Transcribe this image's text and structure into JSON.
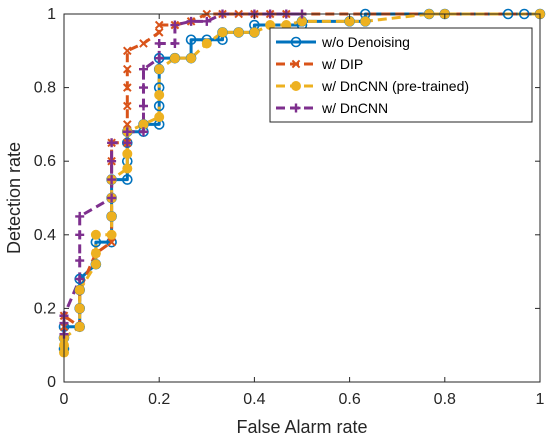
{
  "chart_data": {
    "type": "line",
    "title": "",
    "xlabel": "False Alarm rate",
    "ylabel": "Detection rate",
    "xlim": [
      0,
      1
    ],
    "ylim": [
      0,
      1
    ],
    "x_ticks": [
      "0",
      "0.2",
      "0.4",
      "0.6",
      "0.8",
      "1"
    ],
    "y_ticks": [
      "0",
      "0.2",
      "0.4",
      "0.6",
      "0.8",
      "1"
    ],
    "grid": false,
    "legend_position": "top-right",
    "series": [
      {
        "name": "w/o Denoising",
        "color": "#0072BD",
        "marker": "circle-open",
        "line_style": "solid",
        "points": [
          [
            0,
            0.09
          ],
          [
            0,
            0.12
          ],
          [
            0,
            0.15
          ],
          [
            0.033,
            0.15
          ],
          [
            0.033,
            0.2
          ],
          [
            0.033,
            0.25
          ],
          [
            0.033,
            0.28
          ],
          [
            0.067,
            0.32
          ],
          [
            0.067,
            0.38
          ],
          [
            0.1,
            0.38
          ],
          [
            0.1,
            0.45
          ],
          [
            0.1,
            0.5
          ],
          [
            0.1,
            0.55
          ],
          [
            0.133,
            0.55
          ],
          [
            0.133,
            0.6
          ],
          [
            0.133,
            0.65
          ],
          [
            0.133,
            0.68
          ],
          [
            0.167,
            0.68
          ],
          [
            0.167,
            0.7
          ],
          [
            0.2,
            0.7
          ],
          [
            0.2,
            0.75
          ],
          [
            0.2,
            0.8
          ],
          [
            0.2,
            0.85
          ],
          [
            0.2,
            0.88
          ],
          [
            0.233,
            0.88
          ],
          [
            0.267,
            0.88
          ],
          [
            0.267,
            0.93
          ],
          [
            0.3,
            0.93
          ],
          [
            0.333,
            0.93
          ],
          [
            0.333,
            0.95
          ],
          [
            0.367,
            0.95
          ],
          [
            0.4,
            0.95
          ],
          [
            0.4,
            0.97
          ],
          [
            0.5,
            0.97
          ],
          [
            0.5,
            0.98
          ],
          [
            0.6,
            0.98
          ],
          [
            0.633,
            0.98
          ],
          [
            0.633,
            1.0
          ],
          [
            0.767,
            1.0
          ],
          [
            0.8,
            1.0
          ],
          [
            0.933,
            1.0
          ],
          [
            0.967,
            1.0
          ],
          [
            1.0,
            1.0
          ]
        ]
      },
      {
        "name": "w/ DIP",
        "color": "#D95319",
        "marker": "x",
        "line_style": "dashed",
        "points": [
          [
            0,
            0.15
          ],
          [
            0,
            0.18
          ],
          [
            0.033,
            0.15
          ],
          [
            0.033,
            0.2
          ],
          [
            0.033,
            0.25
          ],
          [
            0.067,
            0.35
          ],
          [
            0.1,
            0.38
          ],
          [
            0.1,
            0.45
          ],
          [
            0.1,
            0.5
          ],
          [
            0.1,
            0.55
          ],
          [
            0.1,
            0.6
          ],
          [
            0.1,
            0.65
          ],
          [
            0.133,
            0.65
          ],
          [
            0.133,
            0.7
          ],
          [
            0.133,
            0.75
          ],
          [
            0.133,
            0.8
          ],
          [
            0.133,
            0.85
          ],
          [
            0.133,
            0.9
          ],
          [
            0.167,
            0.92
          ],
          [
            0.2,
            0.95
          ],
          [
            0.2,
            0.97
          ],
          [
            0.233,
            0.97
          ],
          [
            0.267,
            0.98
          ],
          [
            0.3,
            1.0
          ],
          [
            0.333,
            1.0
          ],
          [
            0.367,
            1.0
          ],
          [
            0.4,
            1.0
          ],
          [
            0.433,
            1.0
          ],
          [
            0.467,
            1.0
          ],
          [
            0.8,
            1.0
          ],
          [
            1.0,
            1.0
          ]
        ]
      },
      {
        "name": "w/ DnCNN (pre-trained)",
        "color": "#EDB120",
        "marker": "circle-filled",
        "line_style": "dashed",
        "points": [
          [
            0,
            0.08
          ],
          [
            0,
            0.1
          ],
          [
            0,
            0.12
          ],
          [
            0.033,
            0.15
          ],
          [
            0.033,
            0.2
          ],
          [
            0.033,
            0.25
          ],
          [
            0.067,
            0.32
          ],
          [
            0.067,
            0.35
          ],
          [
            0.067,
            0.4
          ],
          [
            0.1,
            0.4
          ],
          [
            0.1,
            0.45
          ],
          [
            0.1,
            0.5
          ],
          [
            0.1,
            0.55
          ],
          [
            0.133,
            0.58
          ],
          [
            0.133,
            0.62
          ],
          [
            0.133,
            0.68
          ],
          [
            0.167,
            0.7
          ],
          [
            0.2,
            0.72
          ],
          [
            0.2,
            0.78
          ],
          [
            0.2,
            0.85
          ],
          [
            0.233,
            0.88
          ],
          [
            0.267,
            0.88
          ],
          [
            0.3,
            0.92
          ],
          [
            0.333,
            0.95
          ],
          [
            0.367,
            0.95
          ],
          [
            0.4,
            0.95
          ],
          [
            0.433,
            0.97
          ],
          [
            0.467,
            0.97
          ],
          [
            0.5,
            0.98
          ],
          [
            0.6,
            0.98
          ],
          [
            0.633,
            0.98
          ],
          [
            0.767,
            1.0
          ],
          [
            0.8,
            1.0
          ],
          [
            1.0,
            1.0
          ]
        ]
      },
      {
        "name": "w/ DnCNN",
        "color": "#7E2F8E",
        "marker": "plus",
        "line_style": "dashed",
        "points": [
          [
            0,
            0.13
          ],
          [
            0,
            0.16
          ],
          [
            0,
            0.18
          ],
          [
            0.033,
            0.28
          ],
          [
            0.033,
            0.33
          ],
          [
            0.033,
            0.4
          ],
          [
            0.033,
            0.45
          ],
          [
            0.1,
            0.5
          ],
          [
            0.1,
            0.55
          ],
          [
            0.1,
            0.6
          ],
          [
            0.1,
            0.65
          ],
          [
            0.133,
            0.65
          ],
          [
            0.133,
            0.68
          ],
          [
            0.167,
            0.68
          ],
          [
            0.167,
            0.75
          ],
          [
            0.167,
            0.8
          ],
          [
            0.167,
            0.85
          ],
          [
            0.2,
            0.88
          ],
          [
            0.2,
            0.92
          ],
          [
            0.233,
            0.92
          ],
          [
            0.233,
            0.97
          ],
          [
            0.267,
            0.98
          ],
          [
            0.3,
            0.98
          ],
          [
            0.333,
            1.0
          ],
          [
            0.4,
            1.0
          ],
          [
            0.433,
            1.0
          ],
          [
            0.467,
            1.0
          ],
          [
            0.5,
            1.0
          ]
        ]
      }
    ]
  }
}
